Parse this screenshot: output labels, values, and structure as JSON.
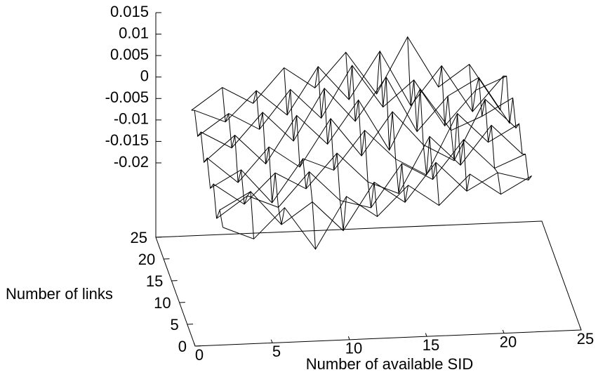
{
  "chart_data": {
    "type": "surface3d",
    "xlabel": "Number of available SID",
    "ylabel": "Number of links",
    "x": [
      2,
      4,
      6,
      8,
      10,
      12,
      14,
      16,
      18,
      20,
      22
    ],
    "y": [
      2,
      4,
      6,
      8,
      10,
      12,
      14,
      16,
      18,
      20,
      22
    ],
    "z": [
      [
        -0.012,
        -0.015,
        -0.008,
        -0.018,
        -0.006,
        -0.011,
        -0.004,
        -0.009,
        -0.002,
        -0.007,
        -0.003
      ],
      [
        -0.01,
        -0.006,
        -0.014,
        -0.009,
        -0.016,
        -0.005,
        -0.01,
        -0.001,
        -0.008,
        -0.004,
        -0.006
      ],
      [
        -0.014,
        -0.009,
        -0.012,
        -0.004,
        -0.011,
        -0.013,
        -0.003,
        -0.007,
        0.002,
        -0.005,
        -0.002
      ],
      [
        -0.008,
        -0.013,
        -0.006,
        -0.01,
        -0.002,
        -0.009,
        -0.012,
        0.001,
        -0.006,
        0.003,
        -0.004
      ],
      [
        -0.011,
        -0.007,
        -0.015,
        -0.005,
        -0.008,
        0.001,
        -0.006,
        -0.01,
        0.004,
        -0.003,
        0.001
      ],
      [
        -0.006,
        -0.012,
        -0.004,
        -0.009,
        0.002,
        -0.007,
        0.003,
        -0.005,
        -0.009,
        0.005,
        -0.002
      ],
      [
        -0.009,
        -0.003,
        -0.01,
        0.001,
        -0.006,
        0.004,
        -0.008,
        0.006,
        -0.004,
        -0.001,
        0.003
      ],
      [
        -0.004,
        -0.008,
        0.0,
        -0.007,
        0.005,
        -0.003,
        0.007,
        -0.006,
        0.002,
        0.006,
        -0.005
      ],
      [
        -0.007,
        -0.002,
        -0.006,
        0.003,
        -0.004,
        0.008,
        -0.002,
        0.004,
        -0.007,
        0.001,
        0.004
      ],
      [
        -0.003,
        -0.006,
        0.001,
        -0.005,
        0.006,
        -0.002,
        0.009,
        -0.004,
        0.005,
        -0.006,
        0.002
      ],
      [
        -0.005,
        0.0,
        -0.004,
        0.004,
        -0.001,
        0.007,
        -0.003,
        0.01,
        -0.002,
        0.003,
        -0.008
      ]
    ],
    "color": "#000000",
    "xlim": [
      0,
      25
    ],
    "xticks": [
      0,
      5,
      10,
      15,
      20,
      25
    ],
    "ylim": [
      0,
      25
    ],
    "yticks": [
      0,
      5,
      10,
      15,
      20,
      25
    ],
    "zlim": [
      -0.02,
      0.015
    ],
    "zticks": [
      0.015,
      0.01,
      0.005,
      0,
      -0.005,
      -0.01,
      -0.015,
      -0.02
    ]
  }
}
